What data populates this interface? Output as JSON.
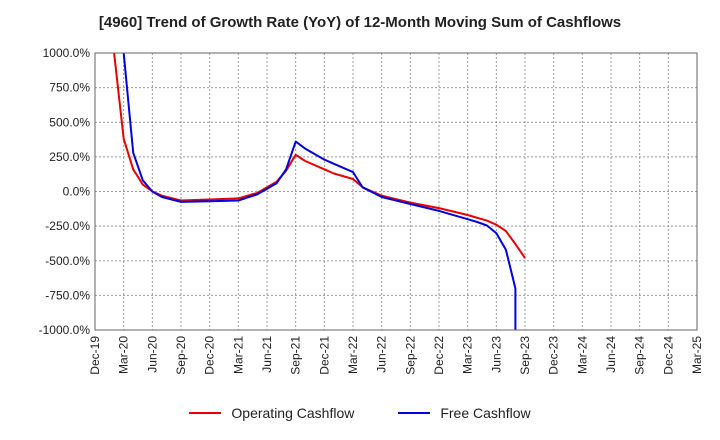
{
  "chart_data": {
    "type": "line",
    "title": "[4960]  Trend of Growth Rate (YoY) of 12-Month Moving Sum of Cashflows",
    "xlabel": "",
    "ylabel": "",
    "x_ticks": [
      "Dec-19",
      "Mar-20",
      "Jun-20",
      "Sep-20",
      "Dec-20",
      "Mar-21",
      "Jun-21",
      "Sep-21",
      "Dec-21",
      "Mar-22",
      "Jun-22",
      "Sep-22",
      "Dec-22",
      "Mar-23",
      "Jun-23",
      "Sep-23",
      "Dec-23",
      "Mar-24",
      "Jun-24",
      "Sep-24",
      "Dec-24",
      "Mar-25"
    ],
    "y_ticks": [
      "1000.0%",
      "750.0%",
      "500.0%",
      "250.0%",
      "0.0%",
      "-250.0%",
      "-500.0%",
      "-750.0%",
      "-1000.0%"
    ],
    "ylim": [
      -1000,
      1000
    ],
    "grid": true,
    "legend_position": "bottom",
    "series": [
      {
        "name": "Operating Cashflow",
        "color": "#e60000",
        "points": [
          [
            "Feb-20",
            1000
          ],
          [
            "Mar-20",
            380
          ],
          [
            "Apr-20",
            160
          ],
          [
            "May-20",
            50
          ],
          [
            "Jun-20",
            0
          ],
          [
            "Jul-20",
            -30
          ],
          [
            "Sep-20",
            -65
          ],
          [
            "Dec-20",
            -58
          ],
          [
            "Mar-21",
            -50
          ],
          [
            "May-21",
            -10
          ],
          [
            "Jul-21",
            70
          ],
          [
            "Aug-21",
            150
          ],
          [
            "Sep-21",
            265
          ],
          [
            "Oct-21",
            220
          ],
          [
            "Dec-21",
            160
          ],
          [
            "Jan-22",
            130
          ],
          [
            "Mar-22",
            90
          ],
          [
            "Apr-22",
            30
          ],
          [
            "Jun-22",
            -30
          ],
          [
            "Sep-22",
            -80
          ],
          [
            "Dec-22",
            -120
          ],
          [
            "Mar-23",
            -170
          ],
          [
            "Apr-23",
            -190
          ],
          [
            "May-23",
            -210
          ],
          [
            "Jun-23",
            -240
          ],
          [
            "Jul-23",
            -285
          ],
          [
            "Aug-23",
            -380
          ],
          [
            "Sep-23",
            -480
          ]
        ]
      },
      {
        "name": "Free Cashflow",
        "color": "#0000dd",
        "points": [
          [
            "Mar-20",
            1000
          ],
          [
            "Apr-20",
            280
          ],
          [
            "May-20",
            80
          ],
          [
            "Jun-20",
            0
          ],
          [
            "Jul-20",
            -40
          ],
          [
            "Sep-20",
            -75
          ],
          [
            "Dec-20",
            -70
          ],
          [
            "Mar-21",
            -65
          ],
          [
            "May-21",
            -20
          ],
          [
            "Jul-21",
            60
          ],
          [
            "Aug-21",
            160
          ],
          [
            "Sep-21",
            360
          ],
          [
            "Oct-21",
            310
          ],
          [
            "Dec-21",
            230
          ],
          [
            "Jan-22",
            200
          ],
          [
            "Mar-22",
            140
          ],
          [
            "Apr-22",
            30
          ],
          [
            "Jun-22",
            -40
          ],
          [
            "Sep-22",
            -90
          ],
          [
            "Dec-22",
            -140
          ],
          [
            "Mar-23",
            -200
          ],
          [
            "Apr-23",
            -220
          ],
          [
            "May-23",
            -245
          ],
          [
            "Jun-23",
            -300
          ],
          [
            "Jul-23",
            -420
          ],
          [
            "Aug-23",
            -700
          ],
          [
            "Aug-23",
            -1000
          ]
        ]
      }
    ]
  }
}
